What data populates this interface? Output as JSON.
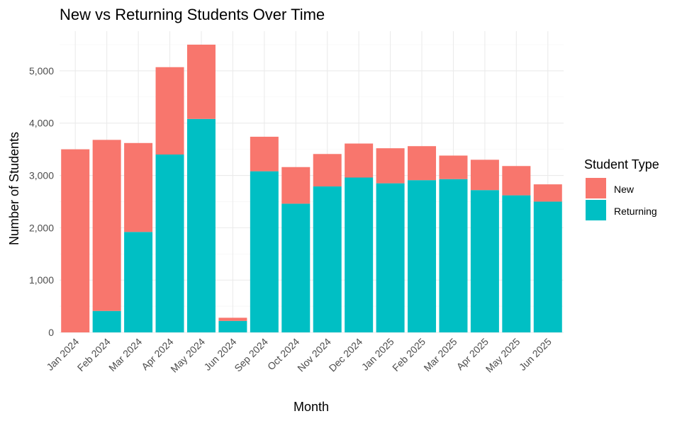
{
  "chart_data": {
    "type": "bar",
    "stacked": true,
    "title": "New vs Returning Students Over Time",
    "xlabel": "Month",
    "ylabel": "Number of Students",
    "categories": [
      "Jan 2024",
      "Feb 2024",
      "Mar 2024",
      "Apr 2024",
      "May 2024",
      "Jun 2024",
      "Sep 2024",
      "Oct 2024",
      "Nov 2024",
      "Dec 2024",
      "Jan 2025",
      "Feb 2025",
      "Mar 2025",
      "Apr 2025",
      "May 2025",
      "Jun 2025"
    ],
    "series": [
      {
        "name": "Returning",
        "color": "#00BFC4",
        "values": [
          0,
          410,
          1920,
          3400,
          4080,
          220,
          3080,
          2460,
          2790,
          2960,
          2850,
          2910,
          2930,
          2720,
          2620,
          2500
        ]
      },
      {
        "name": "New",
        "color": "#F8766D",
        "values": [
          3500,
          3270,
          1700,
          1670,
          1420,
          60,
          660,
          700,
          620,
          650,
          670,
          650,
          450,
          580,
          560,
          330
        ]
      }
    ],
    "yticks": [
      0,
      1000,
      2000,
      3000,
      4000,
      5000
    ],
    "ytick_labels": [
      "0",
      "1,000",
      "2,000",
      "3,000",
      "4,000",
      "5,000"
    ],
    "ylim": [
      0,
      5500
    ],
    "grid": true,
    "legend": {
      "title": "Student Type",
      "placement": "right",
      "items": [
        {
          "label": "New",
          "color": "#F8766D"
        },
        {
          "label": "Returning",
          "color": "#00BFC4"
        }
      ]
    }
  }
}
